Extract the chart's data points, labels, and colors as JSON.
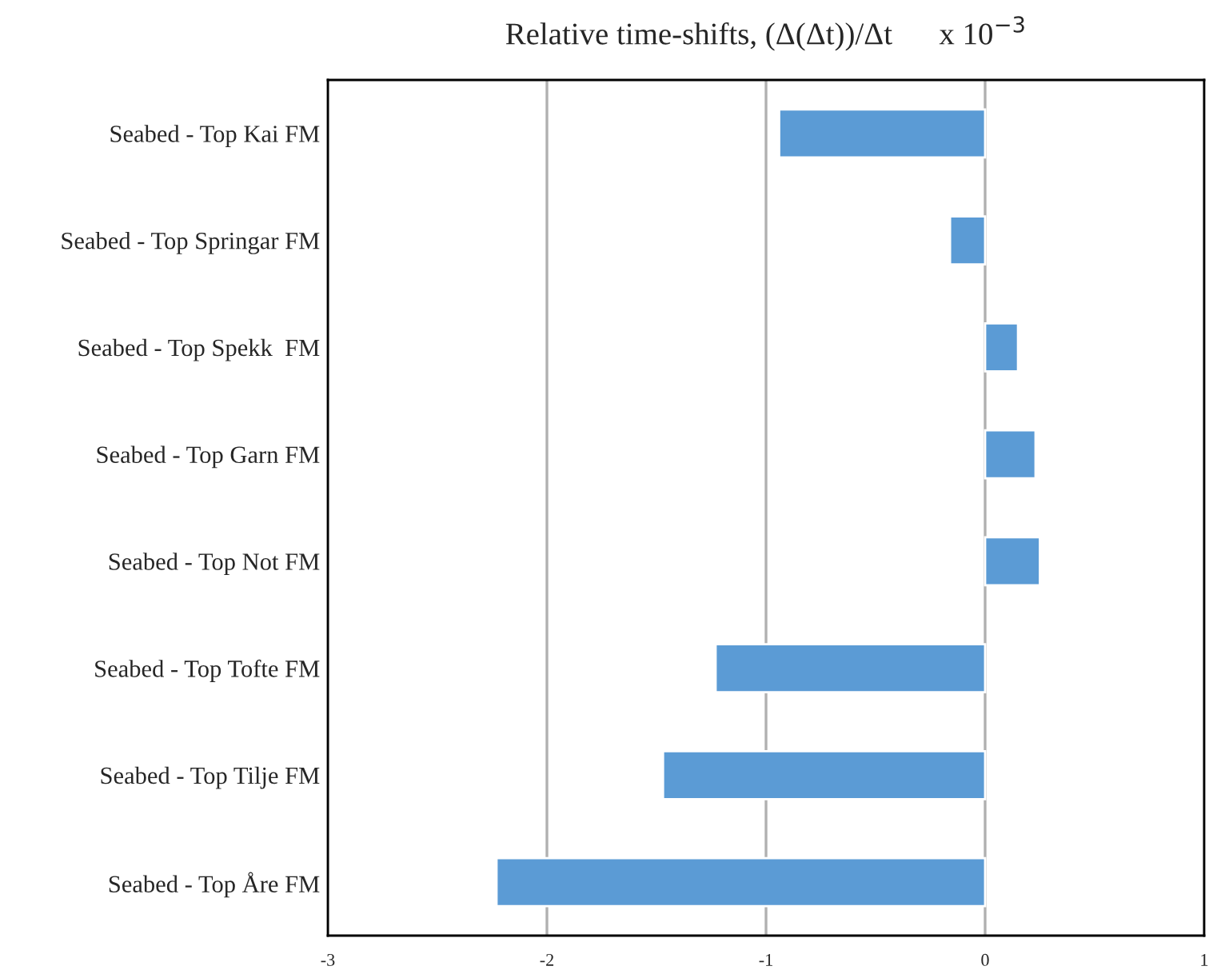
{
  "chart_data": {
    "type": "bar",
    "orientation": "horizontal",
    "title": "Relative time-shifts, (Δ(Δt))/Δt      x 10$^{−3}$",
    "categories": [
      "Seabed - Top Kai FM",
      "Seabed - Top Springar FM",
      "Seabed - Top Spekk  FM",
      "Seabed - Top Garn FM",
      "Seabed - Top Not FM",
      "Seabed - Top Tofte FM",
      "Seabed - Top Tilje FM",
      "Seabed - Top Åre FM"
    ],
    "values": [
      -0.94,
      -0.16,
      0.15,
      0.23,
      0.25,
      -1.23,
      -1.47,
      -2.23
    ],
    "color": "#5b9bd5",
    "xlim": [
      -3,
      1
    ],
    "xticks": [
      -3,
      -2,
      -1,
      0,
      1
    ],
    "grid": "x"
  }
}
